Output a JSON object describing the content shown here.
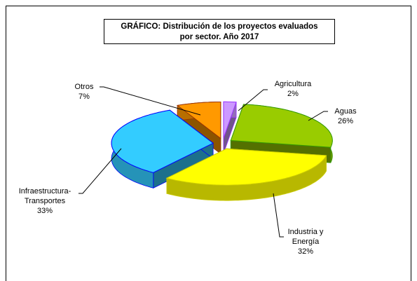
{
  "chart_data": {
    "type": "pie",
    "title": "GRÁFICO: Distribución de los proyectos evaluados por sector. Año 2017",
    "categories": [
      "Agricultura",
      "Aguas",
      "Industria y Energía",
      "Infraestructura-Transportes",
      "Otros"
    ],
    "values": [
      2,
      26,
      32,
      33,
      7
    ],
    "value_labels": [
      "2%",
      "26%",
      "32%",
      "33%",
      "7%"
    ],
    "colors": [
      "#cc99ff",
      "#99cc00",
      "#ffff00",
      "#33ccff",
      "#ff9900"
    ],
    "edge_colors": [
      "#9933ff",
      "#339900",
      "#cccc00",
      "#0000ff",
      "#993300"
    ]
  }
}
